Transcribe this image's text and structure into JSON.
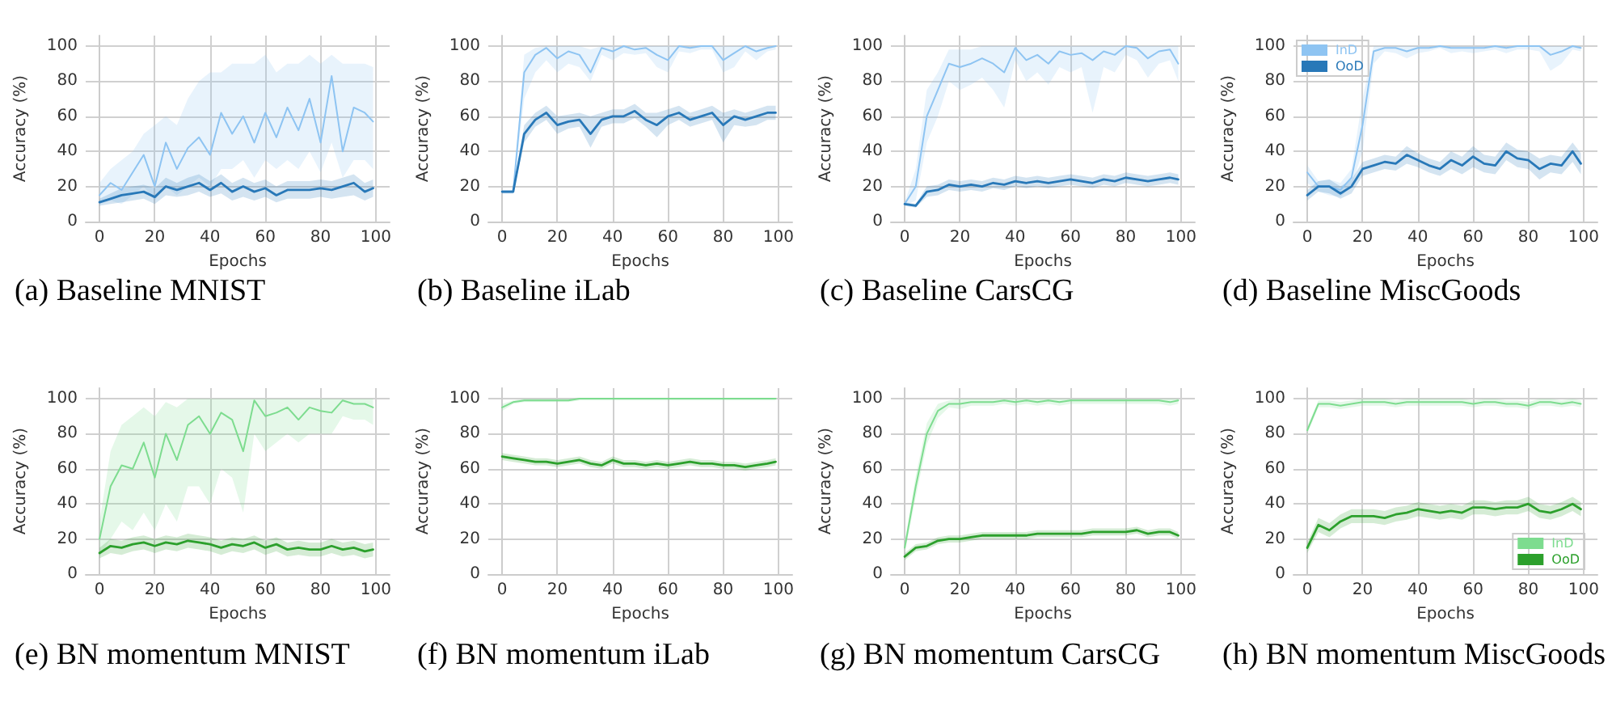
{
  "chart_data": [
    {
      "type": "line",
      "title": "(a) Baseline MNIST",
      "xlabel": "Epochs",
      "ylabel": "Accuracy (%)",
      "x": [
        0,
        4,
        8,
        12,
        16,
        20,
        24,
        28,
        32,
        36,
        40,
        44,
        48,
        52,
        56,
        60,
        64,
        68,
        72,
        76,
        80,
        84,
        88,
        92,
        96,
        99
      ],
      "xlim": [
        -5,
        105
      ],
      "ylim": [
        0,
        106
      ],
      "xticks": [
        0,
        20,
        40,
        60,
        80,
        100
      ],
      "yticks": [
        0,
        20,
        40,
        60,
        80,
        100
      ],
      "grid": true,
      "legend": false,
      "marker": "none",
      "series": [
        {
          "color": "#8ec4f2",
          "values": [
            15,
            22,
            18,
            28,
            38,
            20,
            45,
            30,
            42,
            48,
            38,
            62,
            50,
            60,
            45,
            62,
            48,
            65,
            52,
            70,
            45,
            83,
            40,
            65,
            62,
            57
          ],
          "lower": [
            10,
            12,
            10,
            15,
            20,
            12,
            20,
            15,
            20,
            25,
            20,
            30,
            30,
            35,
            25,
            35,
            30,
            35,
            30,
            40,
            28,
            45,
            25,
            35,
            35,
            30
          ],
          "upper": [
            22,
            30,
            35,
            40,
            50,
            55,
            60,
            55,
            70,
            80,
            85,
            85,
            90,
            90,
            90,
            95,
            85,
            90,
            90,
            95,
            90,
            95,
            90,
            90,
            90,
            88
          ]
        },
        {
          "color": "#2878b8",
          "values": [
            11,
            13,
            15,
            16,
            17,
            14,
            20,
            18,
            20,
            22,
            18,
            22,
            17,
            20,
            17,
            19,
            15,
            18,
            18,
            18,
            19,
            18,
            20,
            22,
            17,
            19
          ],
          "lower": [
            9,
            10,
            11,
            12,
            13,
            10,
            15,
            14,
            15,
            17,
            14,
            16,
            12,
            14,
            12,
            14,
            11,
            13,
            13,
            13,
            14,
            13,
            14,
            15,
            12,
            14
          ],
          "upper": [
            13,
            16,
            19,
            20,
            21,
            19,
            25,
            22,
            25,
            27,
            23,
            27,
            22,
            25,
            22,
            24,
            20,
            23,
            23,
            23,
            24,
            23,
            25,
            27,
            22,
            24
          ]
        }
      ]
    },
    {
      "type": "line",
      "title": "(b) Baseline iLab",
      "xlabel": "Epochs",
      "ylabel": "Accuracy (%)",
      "x": [
        0,
        4,
        8,
        12,
        16,
        20,
        24,
        28,
        32,
        36,
        40,
        44,
        48,
        52,
        56,
        60,
        64,
        68,
        72,
        76,
        80,
        84,
        88,
        92,
        96,
        99
      ],
      "xlim": [
        -5,
        105
      ],
      "ylim": [
        0,
        106
      ],
      "xticks": [
        0,
        20,
        40,
        60,
        80,
        100
      ],
      "yticks": [
        0,
        20,
        40,
        60,
        80,
        100
      ],
      "grid": true,
      "legend": false,
      "marker": "none",
      "series": [
        {
          "color": "#8ec4f2",
          "values": [
            17,
            17,
            85,
            95,
            99,
            93,
            97,
            95,
            85,
            99,
            97,
            100,
            98,
            99,
            95,
            92,
            100,
            99,
            100,
            100,
            92,
            96,
            100,
            97,
            99,
            100
          ],
          "lower": [
            16,
            16,
            70,
            85,
            92,
            85,
            90,
            88,
            80,
            95,
            92,
            96,
            95,
            96,
            88,
            85,
            97,
            96,
            98,
            98,
            85,
            88,
            97,
            92,
            97,
            98
          ],
          "upper": [
            18,
            18,
            95,
            99,
            100,
            100,
            100,
            100,
            98,
            100,
            100,
            100,
            100,
            100,
            100,
            100,
            100,
            100,
            100,
            100,
            100,
            100,
            100,
            100,
            100,
            100
          ]
        },
        {
          "color": "#2878b8",
          "values": [
            17,
            17,
            50,
            58,
            62,
            55,
            57,
            58,
            50,
            58,
            60,
            60,
            63,
            58,
            55,
            60,
            62,
            58,
            60,
            62,
            55,
            60,
            58,
            60,
            62,
            62
          ],
          "lower": [
            16,
            16,
            45,
            54,
            58,
            50,
            53,
            54,
            42,
            54,
            56,
            56,
            59,
            54,
            48,
            55,
            58,
            54,
            56,
            58,
            45,
            55,
            54,
            55,
            58,
            58
          ],
          "upper": [
            18,
            18,
            55,
            62,
            66,
            60,
            61,
            62,
            60,
            62,
            64,
            64,
            67,
            62,
            62,
            64,
            66,
            62,
            64,
            66,
            62,
            64,
            62,
            64,
            66,
            66
          ]
        }
      ]
    },
    {
      "type": "line",
      "title": "(c) Baseline CarsCG",
      "xlabel": "Epochs",
      "ylabel": "Accuracy (%)",
      "x": [
        0,
        4,
        8,
        12,
        16,
        20,
        24,
        28,
        32,
        36,
        40,
        44,
        48,
        52,
        56,
        60,
        64,
        68,
        72,
        76,
        80,
        84,
        88,
        92,
        96,
        99
      ],
      "xlim": [
        -5,
        105
      ],
      "ylim": [
        0,
        106
      ],
      "xticks": [
        0,
        20,
        40,
        60,
        80,
        100
      ],
      "yticks": [
        0,
        20,
        40,
        60,
        80,
        100
      ],
      "grid": true,
      "legend": false,
      "marker": "none",
      "series": [
        {
          "color": "#8ec4f2",
          "values": [
            10,
            20,
            60,
            75,
            90,
            88,
            90,
            93,
            90,
            85,
            99,
            92,
            95,
            90,
            97,
            95,
            96,
            92,
            97,
            95,
            100,
            99,
            93,
            97,
            98,
            90
          ],
          "lower": [
            9,
            12,
            45,
            60,
            80,
            75,
            78,
            82,
            75,
            65,
            92,
            80,
            85,
            78,
            88,
            85,
            88,
            62,
            88,
            85,
            95,
            92,
            82,
            90,
            92,
            80
          ],
          "upper": [
            11,
            30,
            75,
            85,
            98,
            98,
            98,
            100,
            100,
            100,
            100,
            100,
            100,
            100,
            100,
            100,
            100,
            100,
            100,
            100,
            100,
            100,
            100,
            100,
            100,
            100
          ]
        },
        {
          "color": "#2878b8",
          "values": [
            10,
            9,
            17,
            18,
            21,
            20,
            21,
            20,
            22,
            21,
            23,
            22,
            23,
            22,
            23,
            24,
            23,
            22,
            24,
            23,
            25,
            24,
            23,
            24,
            25,
            24
          ],
          "lower": [
            9,
            8,
            14,
            15,
            18,
            17,
            18,
            17,
            19,
            18,
            20,
            19,
            20,
            19,
            20,
            21,
            20,
            19,
            21,
            20,
            22,
            21,
            20,
            21,
            22,
            21
          ],
          "upper": [
            11,
            10,
            20,
            21,
            24,
            23,
            24,
            23,
            25,
            24,
            26,
            25,
            26,
            25,
            26,
            27,
            26,
            25,
            27,
            26,
            28,
            27,
            26,
            27,
            28,
            27
          ]
        }
      ]
    },
    {
      "type": "line",
      "title": "(d) Baseline MiscGoods",
      "xlabel": "Epochs",
      "ylabel": "Accuracy (%)",
      "x": [
        0,
        4,
        8,
        12,
        16,
        20,
        24,
        28,
        32,
        36,
        40,
        44,
        48,
        52,
        56,
        60,
        64,
        68,
        72,
        76,
        80,
        84,
        88,
        92,
        96,
        99
      ],
      "xlim": [
        -5,
        105
      ],
      "ylim": [
        0,
        106
      ],
      "xticks": [
        0,
        20,
        40,
        60,
        80,
        100
      ],
      "yticks": [
        0,
        20,
        40,
        60,
        80,
        100
      ],
      "grid": true,
      "legend": "top left",
      "marker": "none",
      "series": [
        {
          "name": "InD",
          "color": "#8ec4f2",
          "values": [
            28,
            20,
            20,
            18,
            25,
            55,
            97,
            99,
            99,
            97,
            99,
            99,
            100,
            99,
            99,
            99,
            99,
            100,
            99,
            100,
            100,
            100,
            95,
            97,
            100,
            99
          ],
          "lower": [
            22,
            17,
            15,
            14,
            20,
            40,
            90,
            97,
            96,
            93,
            96,
            97,
            99,
            96,
            97,
            96,
            97,
            98,
            96,
            98,
            98,
            97,
            86,
            90,
            98,
            97
          ],
          "upper": [
            32,
            23,
            24,
            22,
            30,
            70,
            100,
            100,
            100,
            100,
            100,
            100,
            100,
            100,
            100,
            100,
            100,
            100,
            100,
            100,
            100,
            100,
            100,
            100,
            100,
            100
          ]
        },
        {
          "name": "OoD",
          "color": "#2878b8",
          "values": [
            15,
            20,
            20,
            16,
            20,
            30,
            32,
            34,
            33,
            38,
            35,
            32,
            30,
            35,
            32,
            37,
            33,
            32,
            40,
            36,
            35,
            30,
            33,
            32,
            40,
            33
          ],
          "lower": [
            12,
            17,
            16,
            13,
            16,
            26,
            28,
            30,
            29,
            33,
            31,
            28,
            26,
            30,
            27,
            31,
            28,
            27,
            35,
            31,
            30,
            24,
            28,
            27,
            34,
            27
          ],
          "upper": [
            18,
            23,
            24,
            20,
            24,
            34,
            36,
            38,
            37,
            43,
            39,
            36,
            34,
            40,
            37,
            43,
            38,
            37,
            45,
            41,
            40,
            36,
            38,
            37,
            45,
            39
          ]
        }
      ]
    },
    {
      "type": "line",
      "title": "(e) BN momentum MNIST",
      "xlabel": "Epochs",
      "ylabel": "Accuracy (%)",
      "x": [
        0,
        4,
        8,
        12,
        16,
        20,
        24,
        28,
        32,
        36,
        40,
        44,
        48,
        52,
        56,
        60,
        64,
        68,
        72,
        76,
        80,
        84,
        88,
        92,
        96,
        99
      ],
      "xlim": [
        -5,
        105
      ],
      "ylim": [
        0,
        106
      ],
      "xticks": [
        0,
        20,
        40,
        60,
        80,
        100
      ],
      "yticks": [
        0,
        20,
        40,
        60,
        80,
        100
      ],
      "grid": true,
      "legend": false,
      "marker": "none",
      "series": [
        {
          "color": "#7ddc8f",
          "values": [
            20,
            50,
            62,
            60,
            75,
            55,
            80,
            65,
            85,
            90,
            80,
            92,
            88,
            70,
            99,
            90,
            92,
            95,
            88,
            95,
            93,
            92,
            99,
            97,
            97,
            95
          ],
          "lower": [
            10,
            20,
            30,
            25,
            35,
            25,
            40,
            30,
            50,
            50,
            40,
            60,
            55,
            35,
            80,
            70,
            75,
            80,
            75,
            80,
            80,
            80,
            90,
            88,
            88,
            85
          ],
          "upper": [
            30,
            70,
            85,
            90,
            95,
            90,
            98,
            95,
            100,
            100,
            100,
            100,
            100,
            100,
            100,
            100,
            100,
            100,
            100,
            100,
            100,
            100,
            100,
            100,
            100,
            100
          ]
        },
        {
          "color": "#2ca02c",
          "values": [
            12,
            16,
            15,
            17,
            18,
            16,
            18,
            17,
            19,
            18,
            17,
            15,
            17,
            16,
            18,
            15,
            17,
            14,
            15,
            14,
            14,
            16,
            14,
            15,
            13,
            14
          ],
          "lower": [
            9,
            12,
            11,
            13,
            14,
            12,
            14,
            13,
            15,
            14,
            13,
            11,
            13,
            12,
            14,
            11,
            13,
            10,
            11,
            10,
            10,
            12,
            10,
            11,
            9,
            10
          ],
          "upper": [
            15,
            20,
            19,
            21,
            22,
            20,
            22,
            21,
            23,
            22,
            21,
            19,
            21,
            20,
            22,
            19,
            21,
            18,
            19,
            18,
            18,
            20,
            18,
            19,
            17,
            18
          ]
        }
      ]
    },
    {
      "type": "line",
      "title": "(f) BN momentum iLab",
      "xlabel": "Epochs",
      "ylabel": "Accuracy (%)",
      "x": [
        0,
        4,
        8,
        12,
        16,
        20,
        24,
        28,
        32,
        36,
        40,
        44,
        48,
        52,
        56,
        60,
        64,
        68,
        72,
        76,
        80,
        84,
        88,
        92,
        96,
        99
      ],
      "xlim": [
        -5,
        105
      ],
      "ylim": [
        0,
        106
      ],
      "xticks": [
        0,
        20,
        40,
        60,
        80,
        100
      ],
      "yticks": [
        0,
        20,
        40,
        60,
        80,
        100
      ],
      "grid": true,
      "legend": false,
      "marker": "none",
      "series": [
        {
          "color": "#7ddc8f",
          "values": [
            95,
            98,
            99,
            99,
            99,
            99,
            99,
            100,
            100,
            100,
            100,
            100,
            100,
            100,
            100,
            100,
            100,
            100,
            100,
            100,
            100,
            100,
            100,
            100,
            100,
            100
          ],
          "lower": [
            93,
            97,
            98,
            98,
            98,
            98,
            98,
            99,
            99,
            99,
            99,
            99,
            99,
            99,
            99,
            99,
            99,
            99,
            99,
            99,
            99,
            99,
            99,
            99,
            99,
            99
          ],
          "upper": [
            97,
            99,
            100,
            100,
            100,
            100,
            100,
            100,
            100,
            100,
            100,
            100,
            100,
            100,
            100,
            100,
            100,
            100,
            100,
            100,
            100,
            100,
            100,
            100,
            100,
            100
          ]
        },
        {
          "color": "#2ca02c",
          "values": [
            67,
            66,
            65,
            64,
            64,
            63,
            64,
            65,
            63,
            62,
            65,
            63,
            63,
            62,
            63,
            62,
            63,
            64,
            63,
            63,
            62,
            62,
            61,
            62,
            63,
            64
          ],
          "lower": [
            65,
            64,
            63,
            62,
            62,
            61,
            62,
            63,
            61,
            60,
            63,
            61,
            61,
            60,
            61,
            60,
            61,
            62,
            61,
            61,
            60,
            60,
            59,
            60,
            61,
            62
          ],
          "upper": [
            69,
            68,
            67,
            66,
            66,
            65,
            66,
            67,
            65,
            64,
            67,
            65,
            65,
            64,
            65,
            64,
            65,
            66,
            65,
            65,
            64,
            64,
            63,
            64,
            65,
            66
          ]
        }
      ]
    },
    {
      "type": "line",
      "title": "(g) BN momentum CarsCG",
      "xlabel": "Epochs",
      "ylabel": "Accuracy (%)",
      "x": [
        0,
        4,
        8,
        12,
        16,
        20,
        24,
        28,
        32,
        36,
        40,
        44,
        48,
        52,
        56,
        60,
        64,
        68,
        72,
        76,
        80,
        84,
        88,
        92,
        96,
        99
      ],
      "xlim": [
        -5,
        105
      ],
      "ylim": [
        0,
        106
      ],
      "xticks": [
        0,
        20,
        40,
        60,
        80,
        100
      ],
      "yticks": [
        0,
        20,
        40,
        60,
        80,
        100
      ],
      "grid": true,
      "legend": false,
      "marker": "none",
      "series": [
        {
          "color": "#7ddc8f",
          "values": [
            15,
            50,
            80,
            93,
            97,
            97,
            98,
            98,
            98,
            99,
            98,
            99,
            98,
            99,
            98,
            99,
            99,
            99,
            99,
            99,
            99,
            99,
            99,
            99,
            98,
            99
          ],
          "lower": [
            12,
            44,
            74,
            89,
            95,
            94,
            96,
            96,
            96,
            97,
            96,
            97,
            96,
            97,
            96,
            97,
            97,
            97,
            97,
            97,
            97,
            97,
            97,
            97,
            96,
            97
          ],
          "upper": [
            18,
            56,
            86,
            97,
            99,
            100,
            100,
            100,
            100,
            100,
            100,
            100,
            100,
            100,
            100,
            100,
            100,
            100,
            100,
            100,
            100,
            100,
            100,
            100,
            100,
            100
          ]
        },
        {
          "color": "#2ca02c",
          "values": [
            10,
            15,
            16,
            19,
            20,
            20,
            21,
            22,
            22,
            22,
            22,
            22,
            23,
            23,
            23,
            23,
            23,
            24,
            24,
            24,
            24,
            25,
            23,
            24,
            24,
            22
          ],
          "lower": [
            8,
            13,
            14,
            17,
            18,
            18,
            19,
            20,
            20,
            20,
            20,
            20,
            21,
            21,
            21,
            21,
            21,
            22,
            22,
            22,
            22,
            23,
            21,
            22,
            22,
            20
          ],
          "upper": [
            12,
            17,
            18,
            21,
            22,
            22,
            23,
            24,
            24,
            24,
            24,
            24,
            25,
            25,
            25,
            25,
            25,
            26,
            26,
            26,
            26,
            27,
            25,
            26,
            26,
            24
          ]
        }
      ]
    },
    {
      "type": "line",
      "title": "(h) BN momentum MiscGoods",
      "xlabel": "Epochs",
      "ylabel": "Accuracy (%)",
      "x": [
        0,
        4,
        8,
        12,
        16,
        20,
        24,
        28,
        32,
        36,
        40,
        44,
        48,
        52,
        56,
        60,
        64,
        68,
        72,
        76,
        80,
        84,
        88,
        92,
        96,
        99
      ],
      "xlim": [
        -5,
        105
      ],
      "ylim": [
        0,
        106
      ],
      "xticks": [
        0,
        20,
        40,
        60,
        80,
        100
      ],
      "yticks": [
        0,
        20,
        40,
        60,
        80,
        100
      ],
      "grid": true,
      "legend": "bottom right",
      "marker": "none",
      "series": [
        {
          "name": "InD",
          "color": "#7ddc8f",
          "values": [
            82,
            97,
            97,
            96,
            97,
            98,
            98,
            98,
            97,
            98,
            98,
            98,
            98,
            98,
            98,
            97,
            98,
            98,
            97,
            97,
            96,
            98,
            98,
            97,
            98,
            97
          ],
          "lower": [
            80,
            95,
            95,
            94,
            95,
            96,
            96,
            96,
            95,
            96,
            96,
            96,
            96,
            96,
            96,
            95,
            96,
            96,
            95,
            95,
            94,
            96,
            96,
            95,
            96,
            95
          ],
          "upper": [
            84,
            99,
            99,
            98,
            99,
            100,
            100,
            100,
            99,
            100,
            100,
            100,
            100,
            100,
            100,
            99,
            100,
            100,
            99,
            99,
            98,
            100,
            100,
            99,
            100,
            99
          ]
        },
        {
          "name": "OoD",
          "color": "#2ca02c",
          "values": [
            15,
            28,
            25,
            30,
            33,
            33,
            33,
            32,
            34,
            35,
            37,
            36,
            35,
            36,
            35,
            38,
            38,
            37,
            38,
            38,
            40,
            36,
            35,
            37,
            40,
            37
          ],
          "lower": [
            12,
            24,
            21,
            26,
            29,
            29,
            29,
            28,
            30,
            31,
            33,
            32,
            31,
            32,
            31,
            34,
            34,
            33,
            34,
            34,
            36,
            32,
            31,
            33,
            36,
            33
          ],
          "upper": [
            18,
            32,
            29,
            34,
            37,
            37,
            37,
            36,
            38,
            39,
            41,
            40,
            39,
            40,
            39,
            42,
            42,
            41,
            42,
            42,
            44,
            40,
            39,
            41,
            44,
            41
          ]
        }
      ]
    }
  ]
}
